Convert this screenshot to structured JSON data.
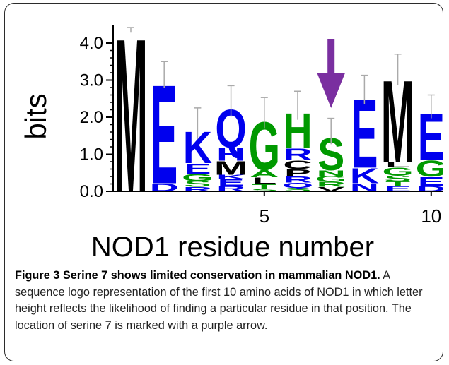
{
  "chart_data": {
    "type": "sequence-logo",
    "ylabel": "bits",
    "xlabel": "NOD1 residue number",
    "ylim": [
      0,
      4.3
    ],
    "yticks": [
      "0.0",
      "1.0",
      "2.0",
      "3.0",
      "4.0"
    ],
    "xticks": [
      {
        "position": 5,
        "label": "5"
      },
      {
        "position": 10,
        "label": "10"
      }
    ],
    "positions": [
      {
        "pos": 1,
        "total": 4.32,
        "error": 0.1,
        "stack": [
          {
            "letter": "M",
            "bits": 4.32,
            "color": "#000000"
          }
        ]
      },
      {
        "pos": 2,
        "total": 3.0,
        "error": 0.5,
        "stack": [
          {
            "letter": "D",
            "bits": 0.22,
            "color": "#0000ee"
          },
          {
            "letter": "E",
            "bits": 2.78,
            "color": "#0000ee"
          }
        ]
      },
      {
        "pos": 3,
        "total": 1.65,
        "error": 0.6,
        "stack": [
          {
            "letter": "R",
            "bits": 0.12,
            "color": "#0000ee"
          },
          {
            "letter": "S",
            "bits": 0.16,
            "color": "#009900"
          },
          {
            "letter": "G",
            "bits": 0.2,
            "color": "#009900"
          },
          {
            "letter": "E",
            "bits": 0.28,
            "color": "#0000ee"
          },
          {
            "letter": "K",
            "bits": 0.89,
            "color": "#0000ee"
          }
        ]
      },
      {
        "pos": 4,
        "total": 2.25,
        "error": 0.6,
        "stack": [
          {
            "letter": "R",
            "bits": 0.15,
            "color": "#0000ee"
          },
          {
            "letter": "E",
            "bits": 0.18,
            "color": "#0000ee"
          },
          {
            "letter": "K",
            "bits": 0.12,
            "color": "#0000ee"
          },
          {
            "letter": "M",
            "bits": 0.38,
            "color": "#000000"
          },
          {
            "letter": "H",
            "bits": 0.35,
            "color": "#0000ee"
          },
          {
            "letter": "Q",
            "bits": 1.07,
            "color": "#0000ee"
          }
        ]
      },
      {
        "pos": 5,
        "total": 1.93,
        "error": 0.6,
        "stack": [
          {
            "letter": "S",
            "bits": 0.08,
            "color": "#009900"
          },
          {
            "letter": "T",
            "bits": 0.12,
            "color": "#009900"
          },
          {
            "letter": "L",
            "bits": 0.18,
            "color": "#000000"
          },
          {
            "letter": "A",
            "bits": 0.2,
            "color": "#009900"
          },
          {
            "letter": "G",
            "bits": 1.35,
            "color": "#009900"
          }
        ]
      },
      {
        "pos": 6,
        "total": 2.15,
        "error": 0.55,
        "stack": [
          {
            "letter": "S",
            "bits": 0.1,
            "color": "#009900"
          },
          {
            "letter": "Q",
            "bits": 0.14,
            "color": "#0000ee"
          },
          {
            "letter": "R",
            "bits": 0.16,
            "color": "#0000ee"
          },
          {
            "letter": "P",
            "bits": 0.2,
            "color": "#000000"
          },
          {
            "letter": "C",
            "bits": 0.25,
            "color": "#000000"
          },
          {
            "letter": "R",
            "bits": 0.32,
            "color": "#0000ee"
          },
          {
            "letter": "H",
            "bits": 0.98,
            "color": "#009900"
          }
        ]
      },
      {
        "pos": 7,
        "total": 1.47,
        "error": 0.5,
        "stack": [
          {
            "letter": "V",
            "bits": 0.12,
            "color": "#000000"
          },
          {
            "letter": "R",
            "bits": 0.14,
            "color": "#009900"
          },
          {
            "letter": "G",
            "bits": 0.16,
            "color": "#009900"
          },
          {
            "letter": "N",
            "bits": 0.15,
            "color": "#009900"
          },
          {
            "letter": "S",
            "bits": 0.9,
            "color": "#009900"
          }
        ]
      },
      {
        "pos": 8,
        "total": 2.58,
        "error": 0.55,
        "stack": [
          {
            "letter": "N",
            "bits": 0.22,
            "color": "#0000ee"
          },
          {
            "letter": "K",
            "bits": 0.42,
            "color": "#0000ee"
          },
          {
            "letter": "E",
            "bits": 1.94,
            "color": "#0000ee"
          }
        ]
      },
      {
        "pos": 9,
        "total": 3.1,
        "error": 0.6,
        "stack": [
          {
            "letter": "E",
            "bits": 0.15,
            "color": "#0000ee"
          },
          {
            "letter": "T",
            "bits": 0.12,
            "color": "#009900"
          },
          {
            "letter": "S",
            "bits": 0.16,
            "color": "#009900"
          },
          {
            "letter": "G",
            "bits": 0.22,
            "color": "#009900"
          },
          {
            "letter": "L",
            "bits": 0.15,
            "color": "#000000"
          },
          {
            "letter": "M",
            "bits": 2.3,
            "color": "#000000"
          }
        ]
      },
      {
        "pos": 10,
        "total": 2.15,
        "error": 0.45,
        "stack": [
          {
            "letter": "D",
            "bits": 0.15,
            "color": "#0000ee"
          },
          {
            "letter": "E",
            "bits": 0.25,
            "color": "#0000ee"
          },
          {
            "letter": "G",
            "bits": 0.45,
            "color": "#009900"
          },
          {
            "letter": "E",
            "bits": 1.3,
            "color": "#0000ee"
          }
        ]
      }
    ],
    "annotation": {
      "type": "arrow",
      "position": 7,
      "color": "#7a2fa0"
    }
  },
  "caption": {
    "figure_label": "Figure 3",
    "title": "Serine 7 shows limited conservation in mammalian NOD1.",
    "body": "A sequence logo representation of the first 10 amino acids of NOD1 in which letter height reflects the likelihood of finding a particular residue in that position. The location of serine 7 is marked with a purple arrow."
  }
}
